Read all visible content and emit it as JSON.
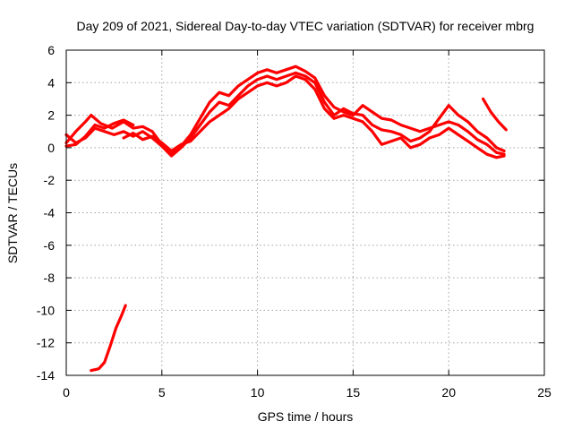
{
  "chart_data": {
    "type": "line",
    "title": "Day 209 of 2021, Sidereal Day-to-day VTEC variation (SDTVAR) for receiver mbrg",
    "xlabel": "GPS time / hours",
    "ylabel": "SDTVAR / TECUs",
    "xlim": [
      0,
      25
    ],
    "ylim": [
      -14,
      6
    ],
    "xticks": [
      0,
      5,
      10,
      15,
      20,
      25
    ],
    "yticks": [
      -14,
      -12,
      -10,
      -8,
      -6,
      -4,
      -2,
      0,
      2,
      4,
      6
    ],
    "grid": true,
    "legend": "none",
    "color": "#ff0000",
    "series": [
      {
        "name": "track-1",
        "x": [
          0.0,
          0.5,
          1.0,
          1.3,
          1.8,
          2.4,
          3.0,
          3.5,
          4.0,
          4.5,
          5.0,
          5.5,
          6.0,
          6.5,
          7.0,
          7.5,
          8.0,
          8.5,
          9.0,
          9.5,
          10.0,
          10.5,
          11.0,
          11.5,
          12.0,
          12.5,
          13.0,
          13.5,
          14.0,
          14.5,
          15.0,
          15.5,
          16.0,
          16.5,
          17.0,
          17.5,
          18.0,
          18.5,
          19.0,
          19.5,
          20.0,
          20.5,
          21.0,
          21.5,
          22.0,
          22.5,
          22.9
        ],
        "y": [
          0.3,
          1.0,
          1.6,
          2.0,
          1.5,
          1.2,
          1.6,
          1.2,
          1.3,
          1.0,
          0.2,
          -0.4,
          0.1,
          0.8,
          1.8,
          2.8,
          3.4,
          3.2,
          3.8,
          4.2,
          4.6,
          4.8,
          4.6,
          4.8,
          5.0,
          4.7,
          4.3,
          3.2,
          2.5,
          2.2,
          2.0,
          2.6,
          2.2,
          1.8,
          1.7,
          1.4,
          1.2,
          1.0,
          1.2,
          1.4,
          1.6,
          1.4,
          1.0,
          0.5,
          0.2,
          -0.3,
          -0.4
        ]
      },
      {
        "name": "track-2",
        "x": [
          0.0,
          0.5,
          1.0,
          1.5,
          2.0,
          2.5,
          3.0,
          3.5,
          4.0,
          4.5,
          5.0,
          5.5,
          6.0,
          6.5,
          7.0,
          7.5,
          8.0,
          8.5,
          9.0,
          9.5,
          10.0,
          10.5,
          11.0,
          11.5,
          12.0,
          12.5,
          13.0,
          13.5,
          14.0,
          14.5,
          15.0,
          15.5,
          16.0,
          16.5,
          17.0,
          17.5,
          18.0,
          18.5,
          19.0,
          19.5,
          20.0,
          20.5,
          21.0,
          21.5,
          22.0,
          22.5,
          22.9
        ],
        "y": [
          0.8,
          0.3,
          0.6,
          1.2,
          1.0,
          0.8,
          1.0,
          0.7,
          1.0,
          0.6,
          0.1,
          -0.5,
          0.0,
          0.6,
          1.4,
          2.2,
          2.8,
          2.6,
          3.2,
          3.8,
          4.2,
          4.4,
          4.2,
          4.4,
          4.6,
          4.4,
          4.0,
          2.8,
          2.0,
          2.4,
          2.1,
          2.0,
          1.4,
          1.1,
          1.0,
          0.8,
          0.4,
          0.6,
          1.0,
          1.8,
          2.6,
          2.0,
          1.6,
          1.0,
          0.6,
          0.0,
          -0.2
        ]
      },
      {
        "name": "track-3",
        "x": [
          3.0,
          3.5,
          4.0,
          4.5,
          5.0,
          5.5,
          6.0,
          6.5,
          7.0,
          7.5,
          8.0,
          8.5,
          9.0,
          9.5,
          10.0,
          10.5,
          11.0,
          11.5,
          12.0,
          12.5,
          13.0,
          13.5,
          14.0,
          14.5,
          15.0,
          15.5,
          16.0,
          16.5,
          17.0,
          17.5,
          18.0,
          18.5,
          19.0,
          19.5,
          20.0,
          20.5,
          21.0,
          21.5,
          22.0,
          22.5,
          22.9
        ],
        "y": [
          0.6,
          0.9,
          0.5,
          0.7,
          0.3,
          -0.2,
          0.2,
          0.4,
          1.0,
          1.6,
          2.0,
          2.4,
          3.0,
          3.4,
          3.8,
          4.0,
          3.8,
          4.0,
          4.4,
          4.2,
          3.6,
          2.4,
          1.8,
          2.0,
          1.8,
          1.6,
          1.0,
          0.2,
          0.4,
          0.6,
          0.0,
          0.2,
          0.6,
          0.8,
          1.2,
          0.8,
          0.4,
          0.0,
          -0.4,
          -0.6,
          -0.5
        ]
      },
      {
        "name": "track-4",
        "x": [
          0.0,
          0.5,
          1.0,
          1.5,
          2.0,
          2.5,
          3.0,
          3.5
        ],
        "y": [
          0.1,
          0.2,
          0.7,
          1.4,
          1.2,
          1.5,
          1.7,
          1.4
        ]
      },
      {
        "name": "track-5",
        "x": [
          21.8,
          22.2,
          22.6,
          23.0
        ],
        "y": [
          3.0,
          2.2,
          1.6,
          1.1
        ]
      },
      {
        "name": "track-6",
        "x": [
          1.3,
          1.7,
          2.0,
          2.3,
          2.6,
          2.9,
          3.1
        ],
        "y": [
          -13.7,
          -13.6,
          -13.2,
          -12.2,
          -11.1,
          -10.3,
          -9.7
        ]
      }
    ]
  }
}
